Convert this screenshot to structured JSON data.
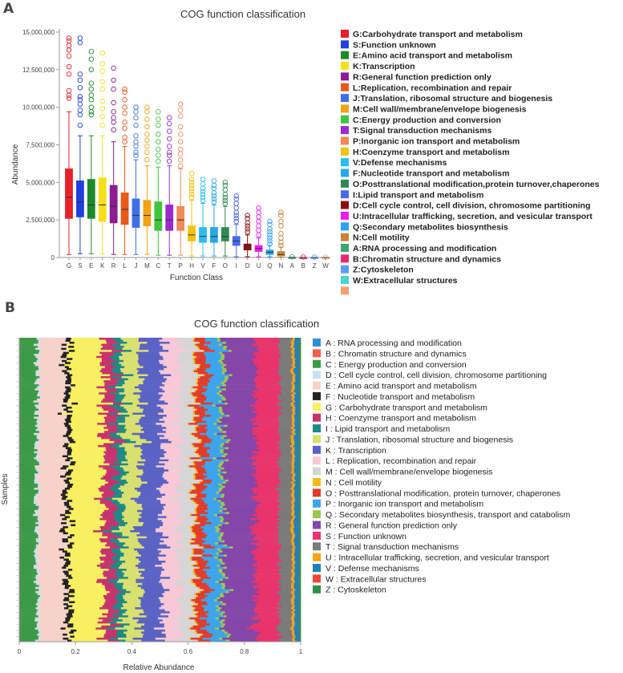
{
  "chart_data": [
    {
      "panel": "A",
      "type": "box",
      "title": "COG function classification",
      "xlabel": "Function Class",
      "ylabel": "Abundance",
      "ylim": [
        0,
        15000000
      ],
      "yticks": [
        0,
        2500000,
        5000000,
        7500000,
        10000000,
        12500000,
        15000000
      ],
      "ytick_labels": [
        "0",
        "2,500,000",
        "5,000,000",
        "7,500,000",
        "10,000,000",
        "12,500,000",
        "15,000,000"
      ],
      "categories": [
        "G",
        "S",
        "E",
        "K",
        "R",
        "L",
        "J",
        "M",
        "C",
        "T",
        "P",
        "H",
        "V",
        "F",
        "O",
        "I",
        "D",
        "U",
        "Q",
        "N",
        "A",
        "B",
        "Z",
        "W"
      ],
      "colors": [
        "#e8202a",
        "#1f3fe0",
        "#1c8a2a",
        "#f6e01a",
        "#8c1c90",
        "#e8591a",
        "#3f6fe6",
        "#f2a313",
        "#3fc43f",
        "#9a2ad0",
        "#f08a56",
        "#f2c20f",
        "#2cbcf2",
        "#28a8e6",
        "#2e8a50",
        "#4a68f0",
        "#8a0f10",
        "#e81ef0",
        "#2ea0f0",
        "#c8863a",
        "#3aa872",
        "#e8286e",
        "#5a9ef0",
        "#f8a880"
      ],
      "box_stats": [
        {
          "cat": "G",
          "min": 200000,
          "q1": 2600000,
          "median": 4000000,
          "q3": 5900000,
          "max": 9700000,
          "outliers": [
            10600000,
            10800000,
            11100000,
            12200000,
            12700000,
            13400000,
            13800000,
            14100000,
            14400000,
            14600000
          ]
        },
        {
          "cat": "S",
          "min": 250000,
          "q1": 2700000,
          "median": 3700000,
          "q3": 5100000,
          "max": 8100000,
          "outliers": [
            8800000,
            9500000,
            9800000,
            10200000,
            10500000,
            10700000,
            11300000,
            11800000,
            12200000,
            14300000,
            14600000
          ]
        },
        {
          "cat": "E",
          "min": 250000,
          "q1": 2600000,
          "median": 3500000,
          "q3": 5200000,
          "max": 8100000,
          "outliers": [
            9500000,
            9700000,
            10000000,
            10500000,
            10800000,
            11200000,
            11600000,
            12500000,
            13200000,
            13700000
          ]
        },
        {
          "cat": "K",
          "min": 250000,
          "q1": 2400000,
          "median": 3500000,
          "q3": 5300000,
          "max": 8100000,
          "outliers": [
            8800000,
            9400000,
            9900000,
            10400000,
            11200000,
            11700000,
            12400000,
            12900000,
            13600000
          ]
        },
        {
          "cat": "R",
          "min": 200000,
          "q1": 2300000,
          "median": 3400000,
          "q3": 4800000,
          "max": 7700000,
          "outliers": [
            8500000,
            9000000,
            9300000,
            9700000,
            10300000,
            11200000,
            11800000,
            12600000
          ]
        },
        {
          "cat": "L",
          "min": 200000,
          "q1": 2200000,
          "median": 3200000,
          "q3": 4300000,
          "max": 7400000,
          "outliers": [
            7700000,
            8000000,
            8600000,
            9000000,
            9600000,
            10000000,
            10500000,
            11000000,
            11200000
          ]
        },
        {
          "cat": "J",
          "min": 200000,
          "q1": 2000000,
          "median": 2800000,
          "q3": 3900000,
          "max": 6500000,
          "outliers": [
            6800000,
            7000000,
            7400000,
            7700000,
            8100000,
            8800000,
            9300000,
            9700000,
            10000000
          ]
        },
        {
          "cat": "M",
          "min": 200000,
          "q1": 2100000,
          "median": 2800000,
          "q3": 3800000,
          "max": 6100000,
          "outliers": [
            6500000,
            7000000,
            7400000,
            7800000,
            8200000,
            8700000,
            9200000,
            9700000,
            10000000
          ]
        },
        {
          "cat": "C",
          "min": 150000,
          "q1": 1800000,
          "median": 2500000,
          "q3": 3700000,
          "max": 6000000,
          "outliers": [
            6400000,
            6800000,
            7200000,
            7700000,
            8200000,
            8800000,
            9200000,
            9700000
          ]
        },
        {
          "cat": "T",
          "min": 150000,
          "q1": 1800000,
          "median": 2500000,
          "q3": 3500000,
          "max": 6100000,
          "outliers": [
            6400000,
            6800000,
            7000000,
            7400000,
            7900000,
            8400000,
            8900000,
            9300000
          ]
        },
        {
          "cat": "P",
          "min": 150000,
          "q1": 1800000,
          "median": 2500000,
          "q3": 3400000,
          "max": 5900000,
          "outliers": [
            6100000,
            6500000,
            6900000,
            7200000,
            7700000,
            8200000,
            8700000,
            9400000,
            9800000,
            10200000
          ]
        },
        {
          "cat": "H",
          "min": 100000,
          "q1": 1100000,
          "median": 1500000,
          "q3": 2100000,
          "max": 3800000,
          "outliers": [
            4000000,
            4200000,
            4400000,
            4600000,
            4800000,
            5000000,
            5200000,
            5600000
          ]
        },
        {
          "cat": "V",
          "min": 100000,
          "q1": 1000000,
          "median": 1400000,
          "q3": 2000000,
          "max": 3600000,
          "outliers": [
            3800000,
            4000000,
            4200000,
            4400000,
            4600000,
            4900000,
            5200000
          ]
        },
        {
          "cat": "F",
          "min": 100000,
          "q1": 1000000,
          "median": 1400000,
          "q3": 2000000,
          "max": 3500000,
          "outliers": [
            3700000,
            3900000,
            4100000,
            4300000,
            4600000,
            4800000,
            5100000
          ]
        },
        {
          "cat": "O",
          "min": 100000,
          "q1": 1100000,
          "median": 1400000,
          "q3": 2000000,
          "max": 3400000,
          "outliers": [
            3600000,
            3800000,
            4000000,
            4200000,
            4500000,
            4800000,
            5000000
          ]
        },
        {
          "cat": "I",
          "min": 50000,
          "q1": 800000,
          "median": 1100000,
          "q3": 1400000,
          "max": 2200000,
          "outliers": [
            2400000,
            2600000,
            2800000,
            3000000,
            3300000,
            3600000,
            3900000,
            4100000
          ]
        },
        {
          "cat": "D",
          "min": 50000,
          "q1": 500000,
          "median": 700000,
          "q3": 900000,
          "max": 1500000,
          "outliers": [
            1700000,
            1900000,
            2100000,
            2300000,
            2600000,
            2800000
          ]
        },
        {
          "cat": "U",
          "min": 50000,
          "q1": 400000,
          "median": 600000,
          "q3": 800000,
          "max": 1300000,
          "outliers": [
            1500000,
            1800000,
            2100000,
            2400000,
            2700000,
            3000000,
            3300000
          ]
        },
        {
          "cat": "Q",
          "min": 50000,
          "q1": 200000,
          "median": 350000,
          "q3": 500000,
          "max": 800000,
          "outliers": [
            900000,
            1100000,
            1300000,
            1500000,
            1700000,
            1900000,
            2200000,
            2400000
          ]
        },
        {
          "cat": "N",
          "min": 20000,
          "q1": 100000,
          "median": 200000,
          "q3": 400000,
          "max": 700000,
          "outliers": [
            800000,
            1000000,
            1300000,
            1600000,
            2100000,
            2400000,
            2800000,
            3000000
          ]
        },
        {
          "cat": "A",
          "min": 0,
          "q1": 0,
          "median": 0,
          "q3": 10000,
          "max": 20000,
          "outliers": [
            50000
          ]
        },
        {
          "cat": "B",
          "min": 0,
          "q1": 0,
          "median": 0,
          "q3": 5000,
          "max": 10000,
          "outliers": [
            30000
          ]
        },
        {
          "cat": "Z",
          "min": 0,
          "q1": 0,
          "median": 0,
          "q3": 5000,
          "max": 10000,
          "outliers": [
            30000
          ]
        },
        {
          "cat": "W",
          "min": 0,
          "q1": 0,
          "median": 0,
          "q3": 5000,
          "max": 10000,
          "outliers": [
            30000
          ]
        }
      ],
      "legend": [
        {
          "label": "G:Carbohydrate transport and metabolism",
          "color": "#e8202a"
        },
        {
          "label": "S:Function unknown",
          "color": "#1f3fe0"
        },
        {
          "label": "E:Amino acid transport and metabolism",
          "color": "#1c8a2a"
        },
        {
          "label": "K:Transcription",
          "color": "#f6e01a"
        },
        {
          "label": "R:General function prediction only",
          "color": "#8c1c90"
        },
        {
          "label": "L:Replication, recombination and repair",
          "color": "#e8591a"
        },
        {
          "label": "J:Translation, ribosomal structure and biogenesis",
          "color": "#3f6fe6"
        },
        {
          "label": "M:Cell wall/membrane/envelope biogenesis",
          "color": "#f2a313"
        },
        {
          "label": "C:Energy production and conversion",
          "color": "#3fc43f"
        },
        {
          "label": "T:Signal transduction mechanisms",
          "color": "#9a2ad0"
        },
        {
          "label": "P:Inorganic ion transport and metabolism",
          "color": "#f08a56"
        },
        {
          "label": "H:Coenzyme transport and metabolism",
          "color": "#f2c20f"
        },
        {
          "label": "V:Defense mechanisms",
          "color": "#2cbcf2"
        },
        {
          "label": "F:Nucleotide transport and metabolism",
          "color": "#28a8e6"
        },
        {
          "label": "O:Posttranslational modification,protein turnover,chaperones",
          "color": "#2e8a50"
        },
        {
          "label": " I:Lipid transport and metabolism",
          "color": "#4a68f0"
        },
        {
          "label": "D:Cell cycle control, cell division, chromosome partitioning",
          "color": "#8a0f10"
        },
        {
          "label": "U:Intracellular trafficking, secretion, and vesicular transport",
          "color": "#e81ef0"
        },
        {
          "label": "Q:Secondary metabolites biosynthesis",
          "color": "#2ea0f0"
        },
        {
          "label": "N:Cell motility",
          "color": "#c8863a"
        },
        {
          "label": "A:RNA processing and modification",
          "color": "#3aa872"
        },
        {
          "label": "B:Chromatin structure and dynamics",
          "color": "#e8286e"
        },
        {
          "label": "Z:Cytoskeleton",
          "color": "#5a9ef0"
        },
        {
          "label": "W:Extracellular structures",
          "color": "#46d8d0"
        },
        {
          "label": "",
          "color": "#f8a070"
        }
      ]
    },
    {
      "panel": "B",
      "type": "stacked-bar-horizontal",
      "title": "COG function classification",
      "xlabel": "Relative Abundance",
      "ylabel": "Samples",
      "xlim": [
        0,
        1
      ],
      "xticks": [
        0,
        0.2,
        0.4,
        0.6,
        0.8,
        1
      ],
      "xtick_labels": [
        "0",
        "0.2",
        "0.4",
        "0.6",
        "0.8",
        "1"
      ],
      "sample_count": 150,
      "stack_order": [
        "A",
        "B",
        "C",
        "D",
        "E",
        "F",
        "G",
        "H",
        "I",
        "J",
        "K",
        "L",
        "M",
        "N",
        "O",
        "P",
        "Q",
        "R",
        "S",
        "T",
        "U",
        "V",
        "W",
        "Z"
      ],
      "mean_proportions": [
        0.002,
        0.001,
        0.058,
        0.008,
        0.094,
        0.018,
        0.117,
        0.042,
        0.03,
        0.06,
        0.08,
        0.062,
        0.052,
        0.006,
        0.036,
        0.05,
        0.012,
        0.11,
        0.085,
        0.045,
        0.01,
        0.016,
        0.001,
        0.005
      ],
      "legend": [
        {
          "label": "A : RNA processing and modification",
          "color": "#2e8fd6"
        },
        {
          "label": "B : Chromatin structure and dynamics",
          "color": "#f0634e"
        },
        {
          "label": "C : Energy production and conversion",
          "color": "#3c9a46"
        },
        {
          "label": "D : Cell cycle control, cell division, chromosome partitioning",
          "color": "#c8e0f4"
        },
        {
          "label": "E : Amino acid transport and metabolism",
          "color": "#f6d2c8"
        },
        {
          "label": "F : Nucleotide transport and metabolism",
          "color": "#222222"
        },
        {
          "label": "G : Carbohydrate transport and metabolism",
          "color": "#f8f060"
        },
        {
          "label": "H : Coenzyme transport and metabolism",
          "color": "#c8336e"
        },
        {
          "label": "I : Lipid transport and metabolism",
          "color": "#1e8a84"
        },
        {
          "label": "J : Translation, ribosomal structure and biogenesis",
          "color": "#d8e070"
        },
        {
          "label": "K : Transcription",
          "color": "#5a62c4"
        },
        {
          "label": "L : Replication, recombination and repair",
          "color": "#f8c8d6"
        },
        {
          "label": "M : Cell wall/membrane/envelope biogenesis",
          "color": "#d6d6d6"
        },
        {
          "label": "N : Cell motility",
          "color": "#f8b818"
        },
        {
          "label": "O : Posttranslational modification, protein turnover, chaperones",
          "color": "#e03c2c"
        },
        {
          "label": "P : Inorganic ion transport and metabolism",
          "color": "#3ca4ec"
        },
        {
          "label": "Q : Secondary metabolites biosynthesis, transport and catabolism",
          "color": "#9cc850"
        },
        {
          "label": "R : General function prediction only",
          "color": "#8446a8"
        },
        {
          "label": "S : Function unknown",
          "color": "#e8346a"
        },
        {
          "label": "T : Signal transduction mechanisms",
          "color": "#7a7a7a"
        },
        {
          "label": "U : Intracellular trafficking, secretion, and vesicular transport",
          "color": "#f8a214"
        },
        {
          "label": "V : Defense mechanisms",
          "color": "#1e82bc"
        },
        {
          "label": "W : Extracellular structures",
          "color": "#f24438"
        },
        {
          "label": "Z : Cytoskeleton",
          "color": "#2e9048"
        }
      ]
    }
  ],
  "panel_a_letter": "A",
  "panel_b_letter": "B"
}
